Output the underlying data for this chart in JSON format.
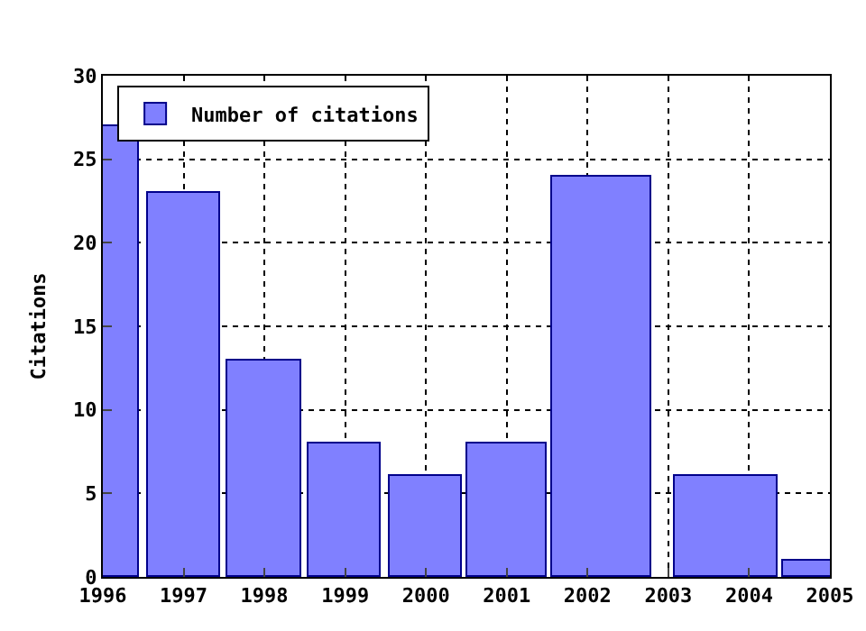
{
  "chart_data": {
    "type": "bar",
    "ylabel": "Citations",
    "x": [
      1996,
      1997,
      1998,
      1999,
      2000,
      2001,
      2002.17,
      2003.71,
      2005
    ],
    "series": [
      {
        "name": "Number of citations",
        "color": "#8080ff",
        "values": [
          27,
          23,
          13,
          8,
          6,
          8,
          24,
          6,
          1
        ]
      }
    ],
    "xlim": [
      1996,
      2005
    ],
    "xticks": [
      1996,
      1997,
      1998,
      1999,
      2000,
      2001,
      2002,
      2003,
      2004,
      2005
    ],
    "ylim": [
      0,
      30
    ],
    "yticks": [
      0,
      5,
      10,
      15,
      20,
      25,
      30
    ],
    "grid": true,
    "legend": "top left"
  }
}
